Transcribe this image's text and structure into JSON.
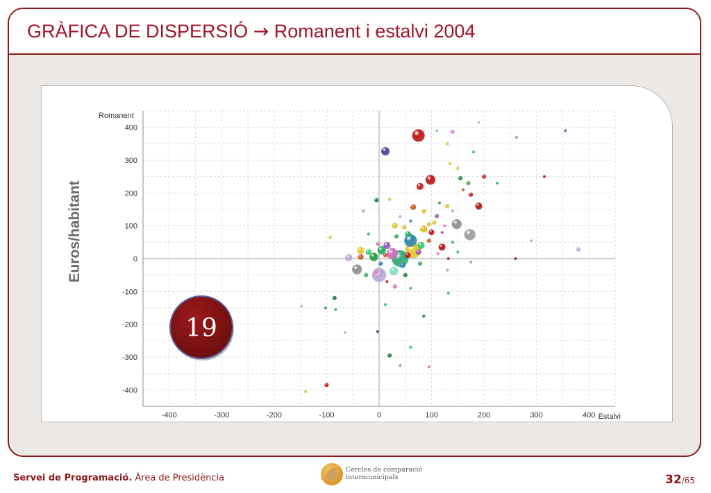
{
  "slide": {
    "title_main": "GRÀFICA DE DISPERSIÓ",
    "title_arrow": "→",
    "title_sub": "Romanent i estalvi 2004"
  },
  "badge": {
    "value": "19"
  },
  "chart_data": {
    "type": "scatter",
    "title": "",
    "ylabel_outer": "Euros/habitant",
    "ylabel": "Romanent",
    "xlabel": "Estalvi",
    "xlim": [
      -450,
      450
    ],
    "ylim": [
      -450,
      450
    ],
    "x_ticks": [
      -400,
      -300,
      -200,
      -100,
      0,
      100,
      200,
      300,
      400
    ],
    "y_ticks": [
      400,
      300,
      200,
      100,
      0,
      -100,
      -200,
      -300,
      -400
    ],
    "grid": true,
    "points": [
      {
        "x": 75,
        "y": 375,
        "r": 9,
        "color": "#c0181c"
      },
      {
        "x": 12,
        "y": 327,
        "r": 6,
        "color": "#5b3f8f"
      },
      {
        "x": 140,
        "y": 387,
        "r": 3,
        "color": "#e08ad8"
      },
      {
        "x": 355,
        "y": 390,
        "r": 2,
        "color": "#6b5bb5"
      },
      {
        "x": 98,
        "y": 240,
        "r": 7,
        "color": "#c0181c"
      },
      {
        "x": 78,
        "y": 220,
        "r": 5,
        "color": "#cc2222"
      },
      {
        "x": 190,
        "y": 160,
        "r": 5,
        "color": "#b11a1a"
      },
      {
        "x": 155,
        "y": 245,
        "r": 3,
        "color": "#228844"
      },
      {
        "x": 170,
        "y": 230,
        "r": 3,
        "color": "#44aa55"
      },
      {
        "x": 200,
        "y": 250,
        "r": 3,
        "color": "#cc2222"
      },
      {
        "x": -5,
        "y": 178,
        "r": 3,
        "color": "#1a7a3a"
      },
      {
        "x": 65,
        "y": 157,
        "r": 4,
        "color": "#c65a1a"
      },
      {
        "x": 85,
        "y": 145,
        "r": 3,
        "color": "#e0c020"
      },
      {
        "x": 110,
        "y": 130,
        "r": 3,
        "color": "#9b59b6"
      },
      {
        "x": 148,
        "y": 105,
        "r": 7,
        "color": "#909090"
      },
      {
        "x": 173,
        "y": 73,
        "r": 8,
        "color": "#a0a0a0"
      },
      {
        "x": 85,
        "y": 90,
        "r": 5,
        "color": "#e0c020"
      },
      {
        "x": 100,
        "y": 80,
        "r": 4,
        "color": "#c0181c"
      },
      {
        "x": 60,
        "y": 55,
        "r": 9,
        "color": "#2e8ab0"
      },
      {
        "x": 65,
        "y": 25,
        "r": 11,
        "color": "#e6c82a"
      },
      {
        "x": 40,
        "y": 0,
        "r": 12,
        "color": "#3aaa7a"
      },
      {
        "x": 25,
        "y": 15,
        "r": 8,
        "color": "#d070c0"
      },
      {
        "x": 5,
        "y": 25,
        "r": 6,
        "color": "#27ae60"
      },
      {
        "x": 15,
        "y": 40,
        "r": 5,
        "color": "#9b59b6"
      },
      {
        "x": -10,
        "y": 5,
        "r": 6,
        "color": "#22a040"
      },
      {
        "x": -35,
        "y": 25,
        "r": 5,
        "color": "#e6c82a"
      },
      {
        "x": -20,
        "y": 20,
        "r": 4,
        "color": "#2ecc71"
      },
      {
        "x": 0,
        "y": -50,
        "r": 10,
        "color": "#b8a8d8"
      },
      {
        "x": -42,
        "y": -33,
        "r": 7,
        "color": "#909090"
      },
      {
        "x": 28,
        "y": -38,
        "r": 6,
        "color": "#7fe0c0"
      },
      {
        "x": -58,
        "y": 3,
        "r": 5,
        "color": "#c0a8d8"
      },
      {
        "x": -35,
        "y": 5,
        "r": 4,
        "color": "#c65a1a"
      },
      {
        "x": 30,
        "y": 100,
        "r": 4,
        "color": "#e6c82a"
      },
      {
        "x": 55,
        "y": 75,
        "r": 4,
        "color": "#27ae60"
      },
      {
        "x": 80,
        "y": 40,
        "r": 5,
        "color": "#2ecc71"
      },
      {
        "x": 120,
        "y": 35,
        "r": 5,
        "color": "#c0181c"
      },
      {
        "x": 45,
        "y": -20,
        "r": 4,
        "color": "#2e8ab0"
      },
      {
        "x": 50,
        "y": -50,
        "r": 3,
        "color": "#1a7a3a"
      },
      {
        "x": -5,
        "y": -40,
        "r": 3,
        "color": "#e07bb0"
      },
      {
        "x": 30,
        "y": -85,
        "r": 3,
        "color": "#e07bb0"
      },
      {
        "x": -100,
        "y": -385,
        "r": 3,
        "color": "#c0181c"
      },
      {
        "x": -140,
        "y": -405,
        "r": 2,
        "color": "#e6c82a"
      },
      {
        "x": 20,
        "y": -295,
        "r": 3,
        "color": "#1a7a3a"
      },
      {
        "x": 40,
        "y": -325,
        "r": 2,
        "color": "#b090d0"
      },
      {
        "x": 95,
        "y": -330,
        "r": 2,
        "color": "#e07bb0"
      },
      {
        "x": -3,
        "y": -222,
        "r": 2,
        "color": "#5b3f8f"
      },
      {
        "x": -85,
        "y": -120,
        "r": 3,
        "color": "#1a7a3a"
      },
      {
        "x": -102,
        "y": -150,
        "r": 2,
        "color": "#2e8ab0"
      },
      {
        "x": -83,
        "y": -155,
        "r": 2,
        "color": "#2ecc71"
      },
      {
        "x": -148,
        "y": -145,
        "r": 1.5,
        "color": "#a0a0a0"
      },
      {
        "x": -93,
        "y": 65,
        "r": 2,
        "color": "#e6c82a"
      },
      {
        "x": 380,
        "y": 28,
        "r": 3,
        "color": "#b8a8d8"
      },
      {
        "x": 262,
        "y": 370,
        "r": 2,
        "color": "#a0a0a0"
      },
      {
        "x": 315,
        "y": 250,
        "r": 2,
        "color": "#c0181c"
      },
      {
        "x": 260,
        "y": 0,
        "r": 2,
        "color": "#c0181c"
      },
      {
        "x": 60,
        "y": -270,
        "r": 2,
        "color": "#2ecc71"
      },
      {
        "x": 85,
        "y": -175,
        "r": 2,
        "color": "#1a7a3a"
      },
      {
        "x": 12,
        "y": -140,
        "r": 2,
        "color": "#2ecc71"
      },
      {
        "x": 130,
        "y": 350,
        "r": 2,
        "color": "#e6c82a"
      },
      {
        "x": 150,
        "y": 275,
        "r": 2,
        "color": "#e6c82a"
      },
      {
        "x": 180,
        "y": 325,
        "r": 2,
        "color": "#2ecc71"
      },
      {
        "x": 135,
        "y": 290,
        "r": 2,
        "color": "#e6c82a"
      },
      {
        "x": 225,
        "y": 230,
        "r": 2,
        "color": "#3aaa7a"
      },
      {
        "x": 160,
        "y": 210,
        "r": 2,
        "color": "#c65a1a"
      },
      {
        "x": 175,
        "y": 195,
        "r": 3,
        "color": "#c0181c"
      },
      {
        "x": 115,
        "y": 170,
        "r": 2,
        "color": "#27ae60"
      },
      {
        "x": 130,
        "y": 160,
        "r": 3,
        "color": "#e6c82a"
      },
      {
        "x": 140,
        "y": 145,
        "r": 2,
        "color": "#c0a8d8"
      },
      {
        "x": 105,
        "y": 110,
        "r": 3,
        "color": "#e6c82a"
      },
      {
        "x": 125,
        "y": 100,
        "r": 2,
        "color": "#e07bb0"
      },
      {
        "x": 95,
        "y": 105,
        "r": 3,
        "color": "#e6c82a"
      },
      {
        "x": 120,
        "y": 80,
        "r": 2,
        "color": "#9b59b6"
      },
      {
        "x": 140,
        "y": 50,
        "r": 2,
        "color": "#27ae60"
      },
      {
        "x": 150,
        "y": 20,
        "r": 2,
        "color": "#2ecc71"
      },
      {
        "x": 112,
        "y": 15,
        "r": 2,
        "color": "#e07bb0"
      },
      {
        "x": 48,
        "y": 95,
        "r": 3,
        "color": "#e6c82a"
      },
      {
        "x": 33,
        "y": 68,
        "r": 3,
        "color": "#27ae60"
      },
      {
        "x": 40,
        "y": 128,
        "r": 2,
        "color": "#c0a8d8"
      },
      {
        "x": 20,
        "y": 180,
        "r": 2,
        "color": "#e6c82a"
      },
      {
        "x": -30,
        "y": 145,
        "r": 2,
        "color": "#b090d0"
      },
      {
        "x": -20,
        "y": 75,
        "r": 2,
        "color": "#27ae60"
      },
      {
        "x": -2,
        "y": 45,
        "r": 3,
        "color": "#e07bb0"
      },
      {
        "x": 12,
        "y": 10,
        "r": 3,
        "color": "#c65a1a"
      },
      {
        "x": 55,
        "y": 10,
        "r": 4,
        "color": "#c0181c"
      },
      {
        "x": 78,
        "y": -15,
        "r": 3,
        "color": "#3aaa7a"
      },
      {
        "x": -25,
        "y": -50,
        "r": 3,
        "color": "#27ae60"
      },
      {
        "x": 15,
        "y": -70,
        "r": 2,
        "color": "#c0181c"
      },
      {
        "x": 60,
        "y": -90,
        "r": 2,
        "color": "#2ecc71"
      },
      {
        "x": 130,
        "y": -35,
        "r": 2,
        "color": "#b8a8d8"
      },
      {
        "x": 132,
        "y": 0,
        "r": 2,
        "color": "#c0181c"
      },
      {
        "x": 175,
        "y": -10,
        "r": 2,
        "color": "#a0a0a0"
      },
      {
        "x": 132,
        "y": -105,
        "r": 2,
        "color": "#2ecc71"
      },
      {
        "x": -65,
        "y": -225,
        "r": 1.5,
        "color": "#a0a0a0"
      },
      {
        "x": 190,
        "y": 415,
        "r": 1.5,
        "color": "#a0a0a0"
      },
      {
        "x": 110,
        "y": 390,
        "r": 1.5,
        "color": "#2ecc71"
      },
      {
        "x": 290,
        "y": 55,
        "r": 1.5,
        "color": "#a0a0a0"
      },
      {
        "x": 75,
        "y": 20,
        "r": 4,
        "color": "#9b59b6"
      },
      {
        "x": 3,
        "y": -15,
        "r": 3,
        "color": "#2e8ab0"
      },
      {
        "x": 95,
        "y": 55,
        "r": 3,
        "color": "#c65a1a"
      },
      {
        "x": 60,
        "y": 115,
        "r": 2,
        "color": "#2e8ab0"
      }
    ]
  },
  "footer": {
    "org_bold": "Servei de Programació.",
    "org_rest": " Àrea de Presidència",
    "logo_line1": "Cercles de comparació",
    "logo_line2": "intermunicipals",
    "page_current": "32",
    "page_total": "/65"
  }
}
